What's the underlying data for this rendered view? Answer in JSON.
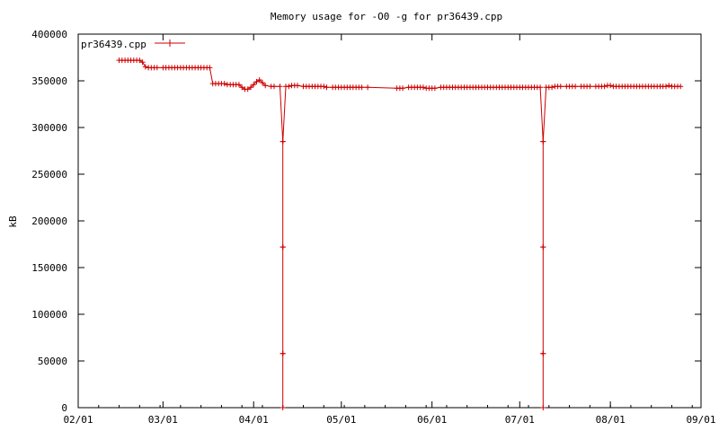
{
  "chart_data": {
    "type": "line",
    "title": "Memory usage for -O0 -g for pr36439.cpp",
    "xlabel": "",
    "ylabel": "kB",
    "x_tick_labels": [
      "02/01",
      "03/01",
      "04/01",
      "05/01",
      "06/01",
      "07/01",
      "08/01",
      "09/01"
    ],
    "x_tick_values": [
      "02/01",
      "03/01",
      "04/01",
      "05/01",
      "06/01",
      "07/01",
      "08/01",
      "09/01"
    ],
    "ylim": [
      0,
      400000
    ],
    "y_ticks": [
      0,
      50000,
      100000,
      150000,
      200000,
      250000,
      300000,
      350000,
      400000
    ],
    "y_tick_labels": [
      "0",
      "50000",
      "100000",
      "150000",
      "200000",
      "250000",
      "300000",
      "350000",
      "400000"
    ],
    "grid": false,
    "legend_position": "top-left",
    "colors": {
      "series": "#cc0000"
    },
    "series": [
      {
        "name": "pr36439.cpp",
        "points": [
          [
            "02/15",
            372000
          ],
          [
            "02/16",
            372000
          ],
          [
            "02/17",
            372000
          ],
          [
            "02/18",
            372000
          ],
          [
            "02/19",
            372000
          ],
          [
            "02/20",
            372000
          ],
          [
            "02/21",
            372000
          ],
          [
            "02/22",
            372000
          ],
          [
            "02/23",
            370000
          ],
          [
            "02/24",
            365000
          ],
          [
            "02/25",
            364000
          ],
          [
            "02/26",
            364000
          ],
          [
            "02/27",
            364000
          ],
          [
            "02/28",
            364000
          ],
          [
            "03/01",
            364000
          ],
          [
            "03/02",
            364000
          ],
          [
            "03/03",
            364000
          ],
          [
            "03/04",
            364000
          ],
          [
            "03/05",
            364000
          ],
          [
            "03/06",
            364000
          ],
          [
            "03/07",
            364000
          ],
          [
            "03/08",
            364000
          ],
          [
            "03/09",
            364000
          ],
          [
            "03/10",
            364000
          ],
          [
            "03/11",
            364000
          ],
          [
            "03/12",
            364000
          ],
          [
            "03/13",
            364000
          ],
          [
            "03/14",
            364000
          ],
          [
            "03/15",
            364000
          ],
          [
            "03/16",
            364000
          ],
          [
            "03/17",
            364000
          ],
          [
            "03/18",
            347000
          ],
          [
            "03/19",
            347000
          ],
          [
            "03/20",
            347000
          ],
          [
            "03/21",
            347000
          ],
          [
            "03/22",
            347000
          ],
          [
            "03/23",
            346000
          ],
          [
            "03/24",
            346000
          ],
          [
            "03/25",
            346000
          ],
          [
            "03/26",
            346000
          ],
          [
            "03/27",
            346000
          ],
          [
            "03/28",
            343000
          ],
          [
            "03/29",
            341000
          ],
          [
            "03/30",
            341000
          ],
          [
            "03/31",
            343000
          ],
          [
            "04/01",
            346000
          ],
          [
            "04/02",
            349000
          ],
          [
            "04/03",
            351000
          ],
          [
            "04/04",
            348000
          ],
          [
            "04/05",
            345000
          ],
          [
            "04/07",
            344000
          ],
          [
            "04/08",
            344000
          ],
          [
            "04/10",
            344000
          ],
          [
            "04/11",
            285000
          ],
          [
            "04/11",
            172000
          ],
          [
            "04/11",
            58000
          ],
          [
            "04/11",
            0
          ],
          [
            "04/11",
            58000
          ],
          [
            "04/11",
            172000
          ],
          [
            "04/11",
            285000
          ],
          [
            "04/12",
            344000
          ],
          [
            "04/13",
            344000
          ],
          [
            "04/14",
            345000
          ],
          [
            "04/15",
            345000
          ],
          [
            "04/16",
            345000
          ],
          [
            "04/18",
            344000
          ],
          [
            "04/19",
            344000
          ],
          [
            "04/20",
            344000
          ],
          [
            "04/21",
            344000
          ],
          [
            "04/22",
            344000
          ],
          [
            "04/23",
            344000
          ],
          [
            "04/24",
            344000
          ],
          [
            "04/25",
            344000
          ],
          [
            "04/26",
            343000
          ],
          [
            "04/28",
            343000
          ],
          [
            "04/29",
            343000
          ],
          [
            "04/30",
            343000
          ],
          [
            "05/01",
            343000
          ],
          [
            "05/02",
            343000
          ],
          [
            "05/03",
            343000
          ],
          [
            "05/04",
            343000
          ],
          [
            "05/05",
            343000
          ],
          [
            "05/06",
            343000
          ],
          [
            "05/07",
            343000
          ],
          [
            "05/08",
            343000
          ],
          [
            "05/10",
            343000
          ],
          [
            "05/20",
            342000
          ],
          [
            "05/21",
            342000
          ],
          [
            "05/22",
            342000
          ],
          [
            "05/24",
            343000
          ],
          [
            "05/25",
            343000
          ],
          [
            "05/26",
            343000
          ],
          [
            "05/27",
            343000
          ],
          [
            "05/28",
            343000
          ],
          [
            "05/29",
            343000
          ],
          [
            "05/30",
            342000
          ],
          [
            "05/31",
            342000
          ],
          [
            "06/01",
            342000
          ],
          [
            "06/02",
            342000
          ],
          [
            "06/04",
            343000
          ],
          [
            "06/05",
            343000
          ],
          [
            "06/06",
            343000
          ],
          [
            "06/07",
            343000
          ],
          [
            "06/08",
            343000
          ],
          [
            "06/09",
            343000
          ],
          [
            "06/10",
            343000
          ],
          [
            "06/11",
            343000
          ],
          [
            "06/12",
            343000
          ],
          [
            "06/13",
            343000
          ],
          [
            "06/14",
            343000
          ],
          [
            "06/15",
            343000
          ],
          [
            "06/16",
            343000
          ],
          [
            "06/17",
            343000
          ],
          [
            "06/18",
            343000
          ],
          [
            "06/19",
            343000
          ],
          [
            "06/20",
            343000
          ],
          [
            "06/21",
            343000
          ],
          [
            "06/22",
            343000
          ],
          [
            "06/23",
            343000
          ],
          [
            "06/24",
            343000
          ],
          [
            "06/25",
            343000
          ],
          [
            "06/26",
            343000
          ],
          [
            "06/27",
            343000
          ],
          [
            "06/28",
            343000
          ],
          [
            "06/29",
            343000
          ],
          [
            "06/30",
            343000
          ],
          [
            "07/01",
            343000
          ],
          [
            "07/02",
            343000
          ],
          [
            "07/03",
            343000
          ],
          [
            "07/04",
            343000
          ],
          [
            "07/05",
            343000
          ],
          [
            "07/06",
            343000
          ],
          [
            "07/07",
            343000
          ],
          [
            "07/08",
            343000
          ],
          [
            "07/09",
            285000
          ],
          [
            "07/09",
            172000
          ],
          [
            "07/09",
            58000
          ],
          [
            "07/09",
            0
          ],
          [
            "07/09",
            58000
          ],
          [
            "07/09",
            172000
          ],
          [
            "07/09",
            285000
          ],
          [
            "07/10",
            343000
          ],
          [
            "07/11",
            343000
          ],
          [
            "07/12",
            343000
          ],
          [
            "07/13",
            344000
          ],
          [
            "07/14",
            344000
          ],
          [
            "07/15",
            344000
          ],
          [
            "07/17",
            344000
          ],
          [
            "07/18",
            344000
          ],
          [
            "07/19",
            344000
          ],
          [
            "07/20",
            344000
          ],
          [
            "07/22",
            344000
          ],
          [
            "07/23",
            344000
          ],
          [
            "07/24",
            344000
          ],
          [
            "07/25",
            344000
          ],
          [
            "07/27",
            344000
          ],
          [
            "07/28",
            344000
          ],
          [
            "07/29",
            344000
          ],
          [
            "07/30",
            344000
          ],
          [
            "07/31",
            345000
          ],
          [
            "08/01",
            345000
          ],
          [
            "08/02",
            344000
          ],
          [
            "08/03",
            344000
          ],
          [
            "08/04",
            344000
          ],
          [
            "08/05",
            344000
          ],
          [
            "08/06",
            344000
          ],
          [
            "08/07",
            344000
          ],
          [
            "08/08",
            344000
          ],
          [
            "08/09",
            344000
          ],
          [
            "08/10",
            344000
          ],
          [
            "08/11",
            344000
          ],
          [
            "08/12",
            344000
          ],
          [
            "08/13",
            344000
          ],
          [
            "08/14",
            344000
          ],
          [
            "08/15",
            344000
          ],
          [
            "08/16",
            344000
          ],
          [
            "08/17",
            344000
          ],
          [
            "08/18",
            344000
          ],
          [
            "08/19",
            344000
          ],
          [
            "08/20",
            344000
          ],
          [
            "08/21",
            345000
          ],
          [
            "08/22",
            344000
          ],
          [
            "08/23",
            344000
          ],
          [
            "08/24",
            344000
          ],
          [
            "08/25",
            344000
          ]
        ]
      }
    ]
  }
}
